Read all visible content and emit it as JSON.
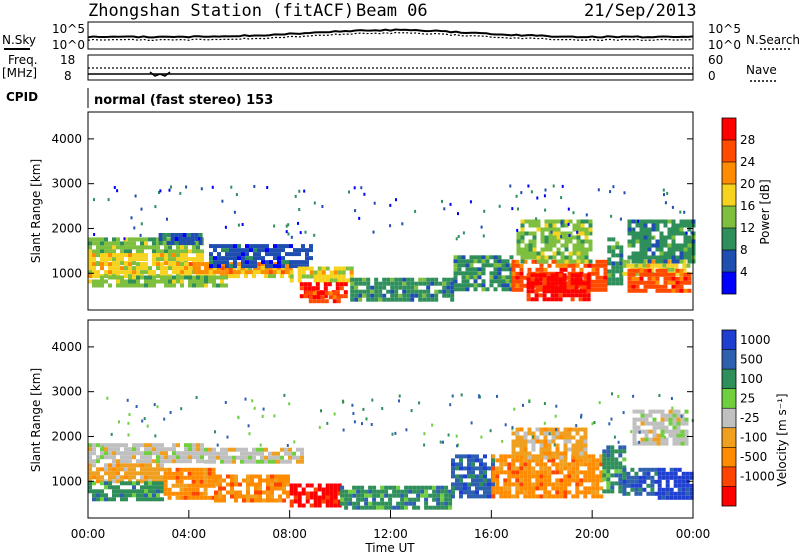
{
  "header": {
    "station_title": "Zhongshan Station (fitACF)",
    "beam": "Beam 06",
    "date": "21/Sep/2013"
  },
  "panels": {
    "nsky": {
      "label": "N.Sky",
      "right_label": "N.Search",
      "left_ticks": [
        "10^5",
        "10^0"
      ],
      "right_ticks": [
        "10^5",
        "10^0"
      ]
    },
    "freq": {
      "label": "Freq.",
      "unit": "[MHz]",
      "right_label": "Nave",
      "left_ticks": [
        "18",
        "8"
      ],
      "right_ticks": [
        "60",
        "0"
      ]
    },
    "cpid": {
      "label": "CPID",
      "text": "normal (fast stereo) 153"
    }
  },
  "chart_data": [
    {
      "type": "heatmap",
      "name": "power",
      "ylabel": "Slant Range [km]",
      "y_ticks": [
        1000,
        2000,
        3000,
        4000
      ],
      "ylim": [
        180,
        4600
      ],
      "colorbar": {
        "label": "Power [dB]",
        "ticks": [
          "4",
          "8",
          "12",
          "16",
          "20",
          "24",
          "28"
        ],
        "colors": [
          "#0000ff",
          "#1e4fb0",
          "#2e8f5a",
          "#7fbf3f",
          "#f6d31f",
          "#ff8c00",
          "#ff4a00",
          "#ff0000"
        ]
      },
      "bands": [
        {
          "x": [
            0,
            4.6
          ],
          "y": [
            1450,
            1800
          ],
          "level": 3
        },
        {
          "x": [
            0,
            4.6
          ],
          "y": [
            1200,
            1450
          ],
          "level": 4
        },
        {
          "x": [
            0,
            8
          ],
          "y": [
            950,
            1250
          ],
          "level": 4
        },
        {
          "x": [
            4,
            8
          ],
          "y": [
            1050,
            1250
          ],
          "level": 5
        },
        {
          "x": [
            0,
            5.5
          ],
          "y": [
            700,
            950
          ],
          "level": 3
        },
        {
          "x": [
            2.8,
            4.4
          ],
          "y": [
            1650,
            1900
          ],
          "level": 1
        },
        {
          "x": [
            4.8,
            8.8
          ],
          "y": [
            1200,
            1650
          ],
          "level": 1
        },
        {
          "x": [
            8,
            10.4
          ],
          "y": [
            800,
            1150
          ],
          "level": 4
        },
        {
          "x": [
            8.4,
            10.2
          ],
          "y": [
            500,
            800
          ],
          "level": 7
        },
        {
          "x": [
            8.6,
            10
          ],
          "y": [
            350,
            600
          ],
          "level": 6
        },
        {
          "x": [
            10.4,
            14.5
          ],
          "y": [
            400,
            900
          ],
          "level": 2
        },
        {
          "x": [
            14.5,
            16.8
          ],
          "y": [
            600,
            1400
          ],
          "level": 2
        },
        {
          "x": [
            16.8,
            20.6
          ],
          "y": [
            600,
            1300
          ],
          "level": 6
        },
        {
          "x": [
            17.4,
            19.8
          ],
          "y": [
            450,
            1000
          ],
          "level": 7
        },
        {
          "x": [
            17,
            20
          ],
          "y": [
            1300,
            2200
          ],
          "level": 3
        },
        {
          "x": [
            20.6,
            21.2
          ],
          "y": [
            800,
            1800
          ],
          "level": 2
        },
        {
          "x": [
            21.2,
            23.8
          ],
          "y": [
            1000,
            1300
          ],
          "level": 4
        },
        {
          "x": [
            21.4,
            23.8
          ],
          "y": [
            600,
            1100
          ],
          "level": 6
        },
        {
          "x": [
            21.4,
            24
          ],
          "y": [
            1300,
            2200
          ],
          "level": 2
        }
      ]
    },
    {
      "type": "heatmap",
      "name": "velocity",
      "xlabel": "Time UT",
      "ylabel": "Slant Range [km]",
      "x_ticks": [
        "00:00",
        "04:00",
        "08:00",
        "12:00",
        "16:00",
        "20:00",
        "00:00"
      ],
      "xlim": [
        0,
        24
      ],
      "y_ticks": [
        1000,
        2000,
        3000,
        4000
      ],
      "ylim": [
        180,
        4600
      ],
      "colorbar": {
        "label": "Velocity [m s⁻¹]",
        "ticks": [
          "1000",
          "500",
          "100",
          "25",
          "-25",
          "-100",
          "-500",
          "-1000"
        ],
        "colors": [
          "#1f3fd0",
          "#2e60b0",
          "#2f8f5a",
          "#6fcf3f",
          "#c0c0c0",
          "#f0a020",
          "#ff8c00",
          "#ff4400",
          "#ff0000"
        ]
      },
      "bands": [
        {
          "x": [
            0,
            4.6
          ],
          "y": [
            1450,
            1850
          ],
          "level": 4
        },
        {
          "x": [
            4.6,
            8.5
          ],
          "y": [
            1450,
            1750
          ],
          "level": 4
        },
        {
          "x": [
            0,
            3
          ],
          "y": [
            1000,
            1400
          ],
          "level": 5
        },
        {
          "x": [
            0,
            3
          ],
          "y": [
            600,
            1000
          ],
          "level": 2
        },
        {
          "x": [
            3,
            5
          ],
          "y": [
            600,
            1300
          ],
          "level": 6
        },
        {
          "x": [
            5,
            8
          ],
          "y": [
            600,
            1150
          ],
          "level": 6
        },
        {
          "x": [
            8,
            10
          ],
          "y": [
            500,
            950
          ],
          "level": 8
        },
        {
          "x": [
            10,
            14.4
          ],
          "y": [
            400,
            900
          ],
          "level": 2
        },
        {
          "x": [
            14.4,
            16
          ],
          "y": [
            700,
            1600
          ],
          "level": 1
        },
        {
          "x": [
            16,
            20.4
          ],
          "y": [
            700,
            1600
          ],
          "level": 6
        },
        {
          "x": [
            16.8,
            19.8
          ],
          "y": [
            1500,
            2200
          ],
          "level": 5
        },
        {
          "x": [
            20.4,
            21.2
          ],
          "y": [
            800,
            1800
          ],
          "level": 2
        },
        {
          "x": [
            21.2,
            22.6
          ],
          "y": [
            700,
            1300
          ],
          "level": 1
        },
        {
          "x": [
            22.6,
            24
          ],
          "y": [
            600,
            1300
          ],
          "level": 0
        },
        {
          "x": [
            21.6,
            23.8
          ],
          "y": [
            1800,
            2600
          ],
          "level": 4
        }
      ]
    }
  ]
}
